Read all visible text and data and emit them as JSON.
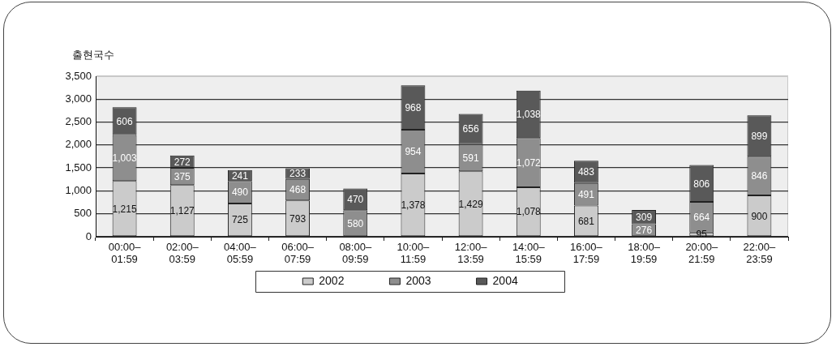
{
  "chart_data": {
    "type": "bar",
    "ylabel": "출현국수",
    "categories": [
      "00:00–01:59",
      "02:00–03:59",
      "04:00–05:59",
      "06:00–07:59",
      "08:00–09:59",
      "10:00–11:59",
      "12:00–13:59",
      "14:00–15:59",
      "16:00–17:59",
      "18:00–19:59",
      "20:00–21:59",
      "22:00–23:59"
    ],
    "series": [
      {
        "name": "2002",
        "color": "#cbcbcb",
        "values": [
          1215,
          1127,
          725,
          793,
          null,
          1378,
          1429,
          1078,
          681,
          null,
          95,
          900
        ],
        "value_labels": [
          "1,215",
          "1,127",
          "725",
          "793",
          null,
          "1,378",
          "1,429",
          "1,078",
          "681",
          null,
          "95",
          "900"
        ]
      },
      {
        "name": "2003",
        "color": "#8e8e8e",
        "values": [
          1003,
          375,
          490,
          468,
          580,
          954,
          591,
          1072,
          491,
          276,
          664,
          846
        ],
        "value_labels": [
          "1,003",
          "375",
          "490",
          "468",
          "580",
          "954",
          "591",
          "1,072",
          "491",
          "276",
          "664",
          "846"
        ]
      },
      {
        "name": "2004",
        "color": "#595959",
        "values": [
          606,
          272,
          241,
          233,
          470,
          968,
          656,
          1038,
          483,
          309,
          806,
          899
        ],
        "value_labels": [
          "606",
          "272",
          "241",
          "233",
          "470",
          "968",
          "656",
          "1,038",
          "483",
          "309",
          "806",
          "899"
        ]
      }
    ],
    "stacked": true,
    "ylim": [
      0,
      3500
    ],
    "yticks": [
      0,
      500,
      {
        "value": 1000,
        "label": "1,000"
      },
      {
        "value": 1500,
        "label": "1,500"
      },
      {
        "value": 2000,
        "label": "2,000"
      },
      {
        "value": 2500,
        "label": "2,500"
      },
      {
        "value": 3000,
        "label": "3,000"
      },
      {
        "value": 3500,
        "label": "3,500"
      }
    ],
    "grid": "y",
    "legend": "bottom"
  }
}
